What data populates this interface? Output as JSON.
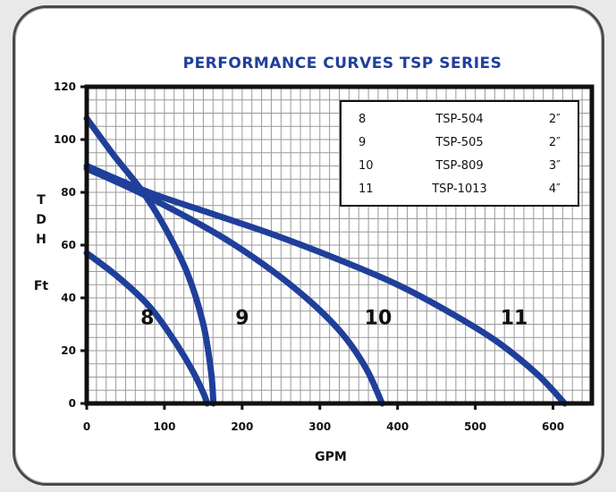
{
  "chart_data": {
    "type": "line",
    "title": "PERFORMANCE CURVES TSP SERIES",
    "xlabel": "GPM",
    "ylabel_letters": [
      "T",
      "D",
      "H"
    ],
    "ylabel_unit": "Ft",
    "xlim": [
      0,
      650
    ],
    "ylim": [
      0,
      120
    ],
    "x_ticks": [
      "0",
      "100",
      "200",
      "300",
      "400",
      "500",
      "600"
    ],
    "y_ticks": [
      "0",
      "20",
      "40",
      "60",
      "80",
      "100",
      "120"
    ],
    "grid": true,
    "legend_position": "top-right",
    "legend": [
      {
        "curve": "8",
        "model": "TSP-504",
        "size": "2″"
      },
      {
        "curve": "9",
        "model": "TSP-505",
        "size": "2″"
      },
      {
        "curve": "10",
        "model": "TSP-809",
        "size": "3″"
      },
      {
        "curve": "11",
        "model": "TSP-1013",
        "size": "4″"
      }
    ],
    "series": [
      {
        "name": "8",
        "x": [
          0,
          40,
          80,
          110,
          135,
          150,
          155
        ],
        "y": [
          57,
          48,
          37,
          25,
          13,
          4,
          0
        ]
      },
      {
        "name": "9",
        "x": [
          0,
          35,
          70,
          100,
          130,
          150,
          160,
          163
        ],
        "y": [
          108,
          94,
          81,
          67,
          49,
          30,
          12,
          0
        ]
      },
      {
        "name": "10",
        "x": [
          0,
          60,
          120,
          180,
          240,
          290,
          330,
          360,
          380
        ],
        "y": [
          89,
          81,
          72,
          62,
          50,
          38,
          26,
          13,
          0
        ]
      },
      {
        "name": "11",
        "x": [
          0,
          80,
          160,
          240,
          320,
          400,
          470,
          530,
          580,
          615
        ],
        "y": [
          90,
          80,
          72,
          64,
          55,
          45,
          34,
          23,
          11,
          0
        ]
      }
    ],
    "series_labels": [
      {
        "text": "8",
        "x": 78,
        "y": 30
      },
      {
        "text": "9",
        "x": 200,
        "y": 30
      },
      {
        "text": "10",
        "x": 375,
        "y": 30
      },
      {
        "text": "11",
        "x": 550,
        "y": 30
      }
    ]
  },
  "colors": {
    "curve": "#1f3f9a",
    "title": "#1f3f9a",
    "grid": "#9a9a9a",
    "axis": "#111111"
  }
}
